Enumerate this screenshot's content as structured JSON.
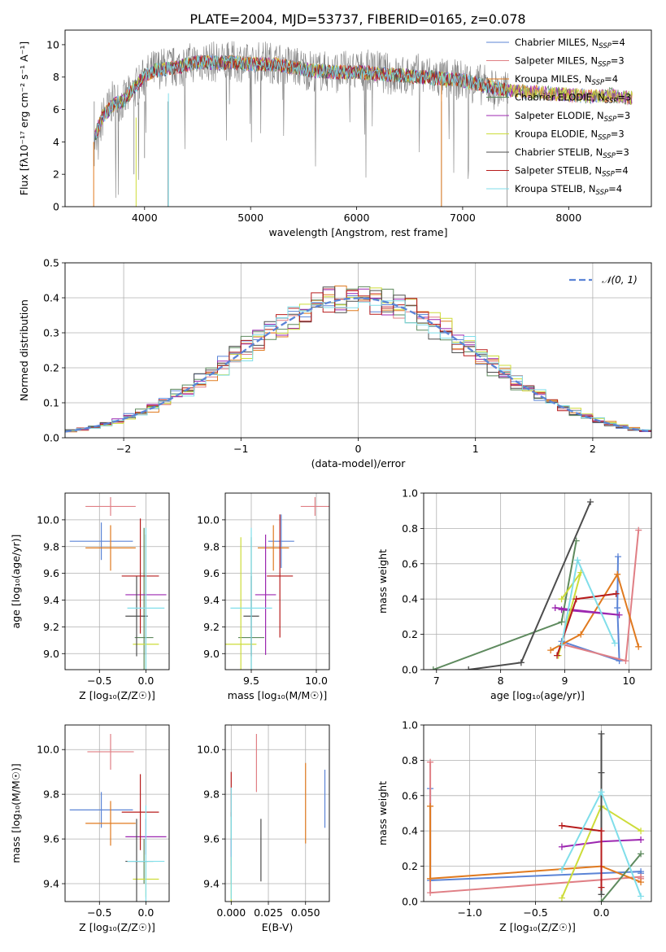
{
  "figure": {
    "title": "PLATE=2004, MJD=53737, FIBERID=0165, z=0.078"
  },
  "legend_series": [
    {
      "name": "Chabrier MILES, N$_{SSP}$=4",
      "label_main": "Chabrier MILES, N",
      "label_sub": "SSP",
      "label_end": "=4",
      "color": "#5b84d6"
    },
    {
      "name": "Salpeter MILES, N$_{SSP}$=3",
      "label_main": "Salpeter MILES, N",
      "label_sub": "SSP",
      "label_end": "=3",
      "color": "#e07f85"
    },
    {
      "name": "Kroupa MILES, N$_{SSP}$=4",
      "label_main": "Kroupa MILES, N",
      "label_sub": "SSP",
      "label_end": "=4",
      "color": "#e07a1f"
    },
    {
      "name": "Chabrier ELODIE, N$_{SSP}$=3",
      "label_main": "Chabrier ELODIE, N",
      "label_sub": "SSP",
      "label_end": "=3",
      "color": "#5e8a5e"
    },
    {
      "name": "Salpeter ELODIE, N$_{SSP}$=3",
      "label_main": "Salpeter ELODIE, N",
      "label_sub": "SSP",
      "label_end": "=3",
      "color": "#9c27b0"
    },
    {
      "name": "Kroupa ELODIE, N$_{SSP}$=3",
      "label_main": "Kroupa ELODIE, N",
      "label_sub": "SSP",
      "label_end": "=3",
      "color": "#cddc39"
    },
    {
      "name": "Chabrier STELIB, N$_{SSP}$=3",
      "label_main": "Chabrier STELIB, N",
      "label_sub": "SSP",
      "label_end": "=3",
      "color": "#4d4d4d"
    },
    {
      "name": "Salpeter STELIB, N$_{SSP}$=4",
      "label_main": "Salpeter STELIB, N",
      "label_sub": "SSP",
      "label_end": "=4",
      "color": "#b71c1c"
    },
    {
      "name": "Kroupa STELIB, N$_{SSP}$=4",
      "label_main": "Kroupa STELIB, N",
      "label_sub": "SSP",
      "label_end": "=4",
      "color": "#80deea"
    }
  ],
  "chart_data": [
    {
      "id": "spectrum",
      "type": "line",
      "title": "PLATE=2004, MJD=53737, FIBERID=0165, z=0.078",
      "xlabel": "wavelength [Angstrom, rest frame]",
      "ylabel": "Flux [f$_\\lambda$10$^{-17}$ erg cm$^{-2}$ s$^{-1}$ A$^{-1}$]",
      "ylabel_text": "Flux [fλ10⁻¹⁷ erg cm⁻² s⁻¹ A⁻¹]",
      "xlim": [
        3250,
        8780
      ],
      "ylim": [
        0,
        10.9
      ],
      "xticks": [
        4000,
        5000,
        6000,
        7000,
        8000
      ],
      "yticks": [
        0,
        2,
        4,
        6,
        8,
        10
      ],
      "grid": false,
      "legend": "upper right",
      "observed_spectrum": {
        "color": "#808080",
        "x": [
          3520,
          3560,
          3600,
          3700,
          3800,
          3900,
          4000,
          4100,
          4200,
          4300,
          4400,
          4500,
          4600,
          4700,
          4800,
          4900,
          5000,
          5100,
          5200,
          5300,
          5400,
          5500,
          5600,
          5800,
          6000,
          6200,
          6400,
          6600,
          6800,
          7000,
          7200,
          7400,
          7430
        ],
        "y": [
          4.1,
          3.7,
          5.5,
          6.5,
          6.5,
          7.2,
          8.0,
          8.5,
          8.6,
          8.6,
          8.8,
          9.0,
          9.0,
          8.9,
          8.9,
          9.0,
          8.7,
          9.0,
          8.9,
          8.8,
          8.7,
          8.5,
          8.4,
          8.3,
          8.4,
          8.4,
          8.0,
          8.2,
          7.9,
          7.8,
          7.5,
          7.0,
          7.4
        ]
      },
      "models_spectrum": {
        "x": [
          3520,
          3600,
          3700,
          3800,
          3900,
          4000,
          4100,
          4200,
          4300,
          4400,
          4500,
          4600,
          4700,
          4800,
          5000,
          5200,
          5400,
          5600,
          5800,
          6000,
          6200,
          6400,
          6600,
          6800,
          7000,
          7200,
          7400,
          7600,
          7800,
          8000,
          8200,
          8400,
          8600
        ],
        "y": [
          4.2,
          5.5,
          6.3,
          6.5,
          7.3,
          8.1,
          8.4,
          8.5,
          8.6,
          8.8,
          8.9,
          8.9,
          8.9,
          8.9,
          8.8,
          8.8,
          8.6,
          8.4,
          8.3,
          8.3,
          8.2,
          8.1,
          8.0,
          7.9,
          7.8,
          7.5,
          7.2,
          7.1,
          7.0,
          6.9,
          6.8,
          6.9,
          6.7
        ]
      }
    },
    {
      "id": "residuals",
      "type": "histogram",
      "xlabel": "(data-model)/error",
      "ylabel": "Normed distribution",
      "xlim": [
        -2.5,
        2.5
      ],
      "ylim": [
        0,
        0.5
      ],
      "xticks": [
        -2,
        -1,
        0,
        1,
        2
      ],
      "yticks": [
        0.0,
        0.1,
        0.2,
        0.3,
        0.4,
        0.5
      ],
      "grid": true,
      "legend": "upper right",
      "reference_curve": {
        "name": "$\\mathcal{N}(0,1)$",
        "label": "𝒩(0, 1)",
        "mean": 0,
        "sigma": 1,
        "color": "#5b84d6",
        "style": "dashed"
      },
      "bin_width": 0.1
    },
    {
      "id": "age-vs-Z",
      "type": "errorbar",
      "xlabel": "Z [log$_{10}$(Z/Z$_\\odot$)]",
      "xlabel_text": "Z [log₁₀(Z/Z☉)]",
      "ylabel": "age  [log$_{10}$(age/yr)]",
      "ylabel_text": "age  [log₁₀(age/yr)]",
      "xlim": [
        -0.87,
        0.25
      ],
      "ylim": [
        8.88,
        10.2
      ],
      "xticks": [
        -0.5,
        0.0
      ],
      "yticks": [
        9.0,
        9.2,
        9.4,
        9.6,
        9.8,
        10.0
      ],
      "grid": true,
      "points": [
        {
          "series": "Chabrier MILES",
          "x": -0.48,
          "xerr": 0.34,
          "y": 9.84,
          "yerr": 0.14
        },
        {
          "series": "Salpeter MILES",
          "x": -0.38,
          "xerr": 0.27,
          "y": 10.1,
          "yerr": 0.07
        },
        {
          "series": "Kroupa MILES",
          "x": -0.38,
          "xerr": 0.27,
          "y": 9.79,
          "yerr": 0.17
        },
        {
          "series": "Chabrier ELODIE",
          "x": -0.02,
          "xerr": 0.1,
          "y": 9.12,
          "yerr": 0.82
        },
        {
          "series": "Salpeter ELODIE",
          "x": 0.0,
          "xerr": 0.22,
          "y": 9.44,
          "yerr": 0.45
        },
        {
          "series": "Kroupa ELODIE",
          "x": 0.0,
          "xerr": 0.14,
          "y": 9.07,
          "yerr": 0.82
        },
        {
          "series": "Chabrier STELIB",
          "x": -0.1,
          "xerr": 0.12,
          "y": 9.28,
          "yerr": 0.3
        },
        {
          "series": "Salpeter STELIB",
          "x": -0.06,
          "xerr": 0.2,
          "y": 9.58,
          "yerr": 0.43
        },
        {
          "series": "Kroupa STELIB",
          "x": 0.0,
          "xerr": 0.2,
          "y": 9.34,
          "yerr": 0.6
        }
      ]
    },
    {
      "id": "age-vs-mass",
      "type": "errorbar",
      "xlabel": "mass [log$_{10}$(M/M$_\\odot$)]",
      "xlabel_text": "mass [log₁₀(M/M☉)]",
      "xlim": [
        9.3,
        10.1
      ],
      "ylim": [
        8.88,
        10.2
      ],
      "xticks": [
        9.5,
        10.0
      ],
      "yticks": [
        9.0,
        9.2,
        9.4,
        9.6,
        9.8,
        10.0
      ],
      "grid": true,
      "points": [
        {
          "series": "Chabrier MILES",
          "x": 9.73,
          "xerr": 0.1,
          "y": 9.84,
          "yerr": 0.2
        },
        {
          "series": "Salpeter MILES",
          "x": 9.99,
          "xerr": 0.11,
          "y": 10.1,
          "yerr": 0.07
        },
        {
          "series": "Kroupa MILES",
          "x": 9.67,
          "xerr": 0.12,
          "y": 9.79,
          "yerr": 0.17
        },
        {
          "series": "Chabrier ELODIE",
          "x": 9.5,
          "xerr": 0.1,
          "y": 9.12,
          "yerr": 0.75
        },
        {
          "series": "Salpeter ELODIE",
          "x": 9.61,
          "xerr": 0.08,
          "y": 9.44,
          "yerr": 0.45
        },
        {
          "series": "Kroupa ELODIE",
          "x": 9.42,
          "xerr": 0.12,
          "y": 9.07,
          "yerr": 0.8
        },
        {
          "series": "Chabrier STELIB",
          "x": 9.5,
          "xerr": 0.06,
          "y": 9.28,
          "yerr": 0.3
        },
        {
          "series": "Salpeter STELIB",
          "x": 9.72,
          "xerr": 0.1,
          "y": 9.58,
          "yerr": 0.46
        },
        {
          "series": "Kroupa STELIB",
          "x": 9.5,
          "xerr": 0.16,
          "y": 9.34,
          "yerr": 0.6
        }
      ]
    },
    {
      "id": "weight-vs-age",
      "type": "line",
      "xlabel": "age  [log$_{10}$(age/yr)]",
      "xlabel_text": "age  [log₁₀(age/yr)]",
      "ylabel": "mass weight",
      "xlim": [
        6.8,
        10.35
      ],
      "ylim": [
        0,
        1.0
      ],
      "xticks": [
        7,
        8,
        9,
        10
      ],
      "yticks": [
        0.0,
        0.2,
        0.4,
        0.6,
        0.8,
        1.0
      ],
      "grid": true,
      "series": [
        {
          "name": "Chabrier MILES",
          "x": [
            8.95,
            9.85,
            9.82,
            9.83
          ],
          "y": [
            0.16,
            0.05,
            0.35,
            0.64
          ]
        },
        {
          "name": "Salpeter MILES",
          "x": [
            9.0,
            9.95,
            10.15
          ],
          "y": [
            0.14,
            0.05,
            0.79
          ]
        },
        {
          "name": "Kroupa MILES",
          "x": [
            8.78,
            9.25,
            9.82,
            10.15
          ],
          "y": [
            0.11,
            0.2,
            0.54,
            0.13
          ]
        },
        {
          "name": "Chabrier ELODIE",
          "x": [
            6.95,
            8.95,
            9.18
          ],
          "y": [
            0.0,
            0.27,
            0.73
          ]
        },
        {
          "name": "Salpeter ELODIE",
          "x": [
            8.85,
            9.85,
            8.95
          ],
          "y": [
            0.35,
            0.31,
            0.34
          ]
        },
        {
          "name": "Kroupa ELODIE",
          "x": [
            8.9,
            9.25,
            8.95
          ],
          "y": [
            0.08,
            0.55,
            0.4
          ]
        },
        {
          "name": "Chabrier STELIB",
          "x": [
            7.5,
            8.32,
            9.4
          ],
          "y": [
            0.0,
            0.04,
            0.95
          ]
        },
        {
          "name": "Salpeter STELIB",
          "x": [
            8.88,
            9.18,
            9.8
          ],
          "y": [
            0.08,
            0.4,
            0.43
          ]
        },
        {
          "name": "Kroupa STELIB",
          "x": [
            8.95,
            9.2,
            9.78
          ],
          "y": [
            0.14,
            0.62,
            0.15
          ]
        }
      ]
    },
    {
      "id": "mass-vs-Z",
      "type": "errorbar",
      "xlabel": "Z [log$_{10}$(Z/Z$_\\odot$)]",
      "xlabel_text": "Z [log₁₀(Z/Z☉)]",
      "ylabel": "mass [log$_{10}$(M/M$_\\odot$)]",
      "ylabel_text": "mass [log₁₀(M/M☉)]",
      "xlim": [
        -0.87,
        0.25
      ],
      "ylim": [
        9.32,
        10.11
      ],
      "xticks": [
        -0.5,
        0.0
      ],
      "yticks": [
        9.4,
        9.6,
        9.8,
        10.0
      ],
      "grid": true,
      "points": [
        {
          "series": "Chabrier MILES",
          "x": -0.48,
          "xerr": 0.34,
          "y": 9.73,
          "yerr": 0.08
        },
        {
          "series": "Salpeter MILES",
          "x": -0.38,
          "xerr": 0.25,
          "y": 9.99,
          "yerr": 0.08
        },
        {
          "series": "Kroupa MILES",
          "x": -0.38,
          "xerr": 0.27,
          "y": 9.67,
          "yerr": 0.1
        },
        {
          "series": "Chabrier ELODIE",
          "x": -0.02,
          "xerr": 0.1,
          "y": 9.5,
          "yerr": 0.1
        },
        {
          "series": "Salpeter ELODIE",
          "x": 0.0,
          "xerr": 0.22,
          "y": 9.61,
          "yerr": 0.08
        },
        {
          "series": "Kroupa ELODIE",
          "x": 0.0,
          "xerr": 0.14,
          "y": 9.42,
          "yerr": 0.08
        },
        {
          "series": "Chabrier STELIB",
          "x": -0.1,
          "xerr": 0.12,
          "y": 9.5,
          "yerr": 0.19
        },
        {
          "series": "Salpeter STELIB",
          "x": -0.06,
          "xerr": 0.2,
          "y": 9.72,
          "yerr": 0.17
        },
        {
          "series": "Kroupa STELIB",
          "x": 0.0,
          "xerr": 0.2,
          "y": 9.5,
          "yerr": 0.25
        }
      ]
    },
    {
      "id": "mass-vs-ebv",
      "type": "errorbar",
      "xlabel": "E(B-V)",
      "xlim": [
        -0.004,
        0.066
      ],
      "ylim": [
        9.32,
        10.11
      ],
      "xticks": [
        0.0,
        0.025,
        0.05
      ],
      "xticklabels": [
        "0.000",
        "0.025",
        "0.050"
      ],
      "yticks": [
        9.4,
        9.6,
        9.8,
        10.0
      ],
      "grid": true,
      "points": [
        {
          "series": "Chabrier MILES",
          "x": 0.063,
          "y": 9.78,
          "yerr": 0.13
        },
        {
          "series": "Salpeter MILES",
          "x": 0.017,
          "y": 9.94,
          "yerr": 0.13
        },
        {
          "series": "Kroupa MILES",
          "x": 0.05,
          "y": 9.76,
          "yerr": 0.18
        },
        {
          "series": "Chabrier ELODIE",
          "x": 0.0,
          "y": 9.6,
          "yerr": 0.12
        },
        {
          "series": "Salpeter ELODIE",
          "x": 0.0,
          "y": 9.5,
          "yerr": 0.1
        },
        {
          "series": "Kroupa ELODIE",
          "x": 0.0,
          "y": 9.42,
          "yerr": 0.1
        },
        {
          "series": "Chabrier STELIB",
          "x": 0.02,
          "y": 9.55,
          "yerr": 0.14
        },
        {
          "series": "Salpeter STELIB",
          "x": 0.0,
          "y": 9.8,
          "yerr": 0.1
        },
        {
          "series": "Kroupa STELIB",
          "x": 0.0,
          "y": 9.58,
          "yerr": 0.25
        }
      ]
    },
    {
      "id": "weight-vs-Z",
      "type": "line",
      "xlabel": "Z [log$_{10}$(Z/Z$_\\odot$)]",
      "xlabel_text": "Z [log₁₀(Z/Z☉)]",
      "ylabel": "mass weight",
      "xlim": [
        -1.35,
        0.38
      ],
      "ylim": [
        0,
        1.0
      ],
      "xticks": [
        -1.0,
        -0.5,
        0.0
      ],
      "yticks": [
        0.0,
        0.2,
        0.4,
        0.6,
        0.8,
        1.0
      ],
      "grid": true,
      "series": [
        {
          "name": "Chabrier MILES",
          "x": [
            -1.3,
            -1.3,
            0.3,
            0.3
          ],
          "y": [
            0.64,
            0.12,
            0.17,
            0.16
          ]
        },
        {
          "name": "Salpeter MILES",
          "x": [
            -1.3,
            -1.3,
            0.3,
            0.3
          ],
          "y": [
            0.79,
            0.05,
            0.14,
            0.13
          ]
        },
        {
          "name": "Kroupa MILES",
          "x": [
            -1.3,
            -1.3,
            0.0,
            0.3
          ],
          "y": [
            0.54,
            0.13,
            0.2,
            0.11
          ]
        },
        {
          "name": "Chabrier ELODIE",
          "x": [
            0.0,
            0.3
          ],
          "y": [
            0.0,
            0.27
          ]
        },
        {
          "name": "Salpeter ELODIE",
          "x": [
            -0.3,
            0.0,
            0.3
          ],
          "y": [
            0.31,
            0.34,
            0.35
          ]
        },
        {
          "name": "Kroupa ELODIE",
          "x": [
            -0.3,
            0.0,
            0.3
          ],
          "y": [
            0.02,
            0.54,
            0.4
          ]
        },
        {
          "name": "Chabrier STELIB",
          "x": [
            0.0,
            0.0,
            0.0
          ],
          "y": [
            0.95,
            0.73,
            0.04
          ]
        },
        {
          "name": "Salpeter STELIB",
          "x": [
            -0.3,
            0.0,
            0.0
          ],
          "y": [
            0.43,
            0.4,
            0.08
          ]
        },
        {
          "name": "Kroupa STELIB",
          "x": [
            -0.3,
            0.0,
            0.3
          ],
          "y": [
            0.18,
            0.62,
            0.03
          ]
        }
      ]
    }
  ]
}
